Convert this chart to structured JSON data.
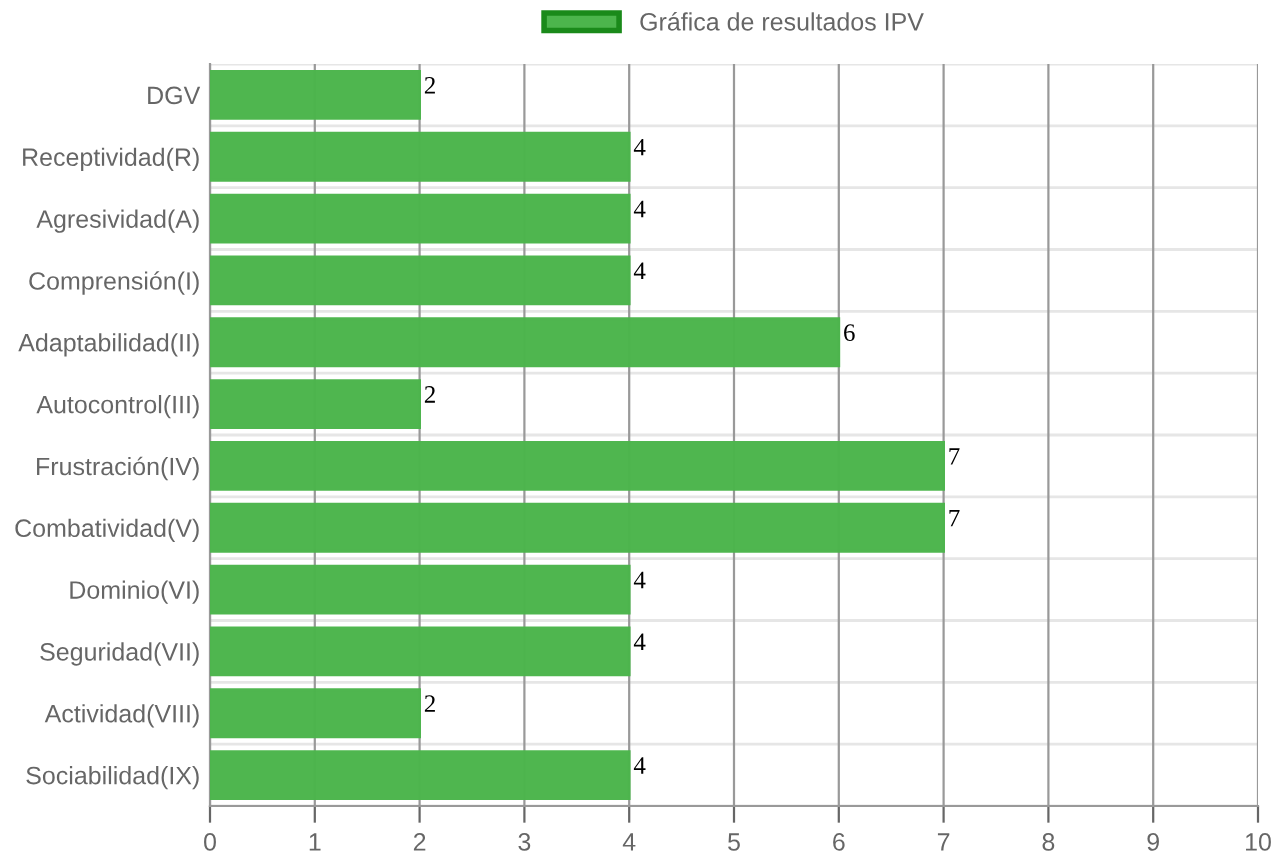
{
  "chart_data": {
    "type": "bar",
    "orientation": "horizontal",
    "categories": [
      "DGV",
      "Receptividad(R)",
      "Agresividad(A)",
      "Comprensión(I)",
      "Adaptabilidad(II)",
      "Autocontrol(III)",
      "Frustración(IV)",
      "Combatividad(V)",
      "Dominio(VI)",
      "Seguridad(VII)",
      "Actividad(VIII)",
      "Sociabilidad(IX)"
    ],
    "series": [
      {
        "name": "Gráfica de resultados IPV",
        "color": "#4cb54c",
        "values": [
          2,
          4,
          4,
          4,
          6,
          2,
          7,
          7,
          4,
          4,
          2,
          4
        ]
      }
    ],
    "xlim": [
      0,
      10
    ],
    "xticks": [
      0,
      1,
      2,
      3,
      4,
      5,
      6,
      7,
      8,
      9,
      10
    ],
    "data_labels": true,
    "grid": true,
    "legend": "top"
  }
}
